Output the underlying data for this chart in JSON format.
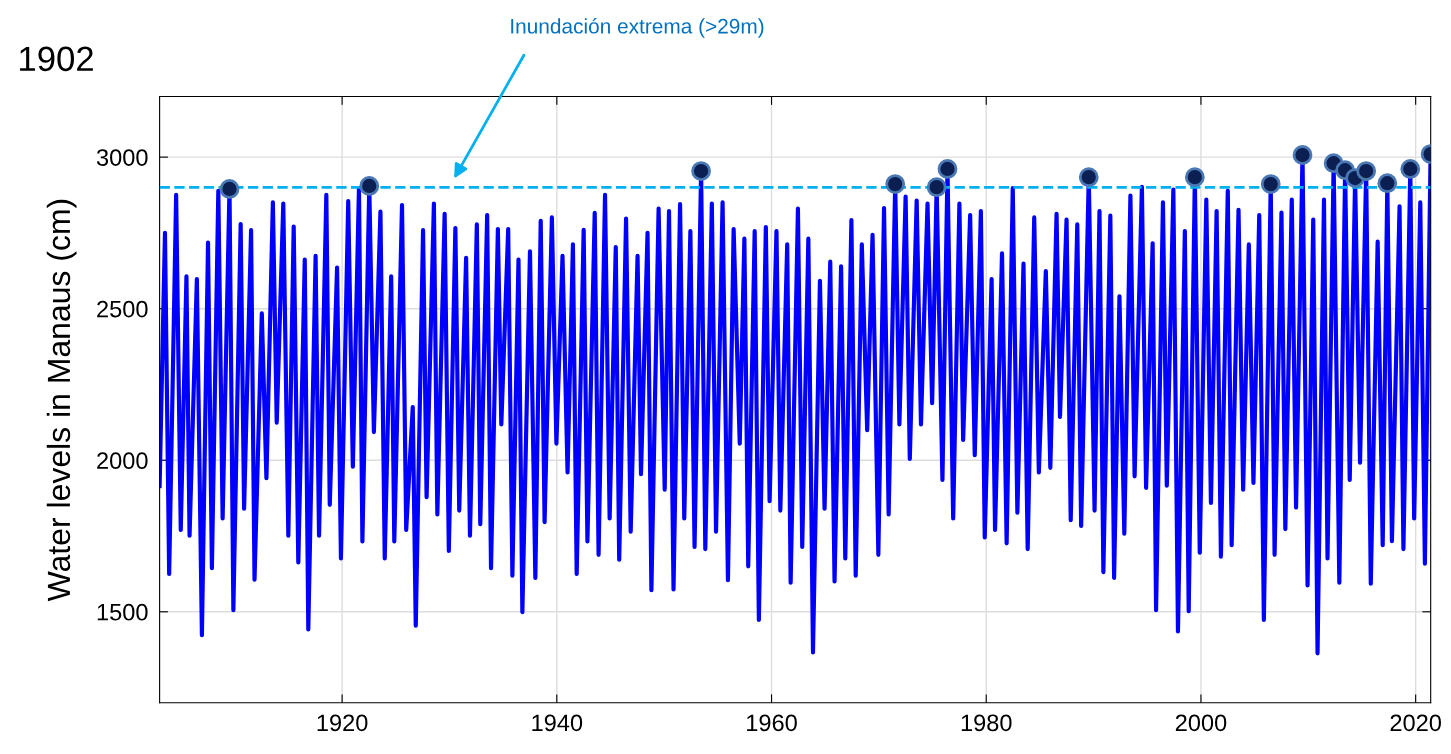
{
  "chart_data": {
    "type": "line",
    "title": "1902",
    "ylabel": "Water levels in Manaus (cm)",
    "xlim": [
      1903,
      2021.4
    ],
    "xticks": [
      1920,
      1940,
      1960,
      1980,
      2000,
      2020
    ],
    "ylim": [
      1200,
      3200
    ],
    "yticks": [
      1500,
      2000,
      2500,
      3000
    ],
    "grid": true,
    "annotations": [
      "Inundación extrema (>29m)"
    ],
    "ref_lines": [
      {
        "axis": "y",
        "value": 2900,
        "color": "#00b0f0",
        "line_style": "dashed"
      }
    ],
    "series": [
      {
        "color": "#0000ff",
        "line_style": "solid",
        "x": [
          1903.0,
          1903.5,
          1903.89,
          1904.54,
          1904.97,
          1905.5,
          1905.79,
          1906.47,
          1906.94,
          1907.51,
          1907.87,
          1908.47,
          1908.87,
          1909.51,
          1909.87,
          1910.55,
          1910.87,
          1911.52,
          1911.84,
          1912.52,
          1912.95,
          1913.55,
          1913.91,
          1914.52,
          1914.99,
          1915.49,
          1915.92,
          1916.52,
          1916.85,
          1917.53,
          1917.85,
          1918.53,
          1918.85,
          1919.53,
          1919.89,
          1920.57,
          1921.0,
          1921.57,
          1921.89,
          1922.53,
          1922.96,
          1923.57,
          1923.97,
          1924.57,
          1924.86,
          1925.58,
          1925.97,
          1926.58,
          1926.86,
          1927.54,
          1927.87,
          1928.55,
          1928.87,
          1929.55,
          1929.94,
          1930.55,
          1930.91,
          1931.55,
          1931.91,
          1932.55,
          1932.87,
          1933.51,
          1933.87,
          1934.51,
          1934.83,
          1935.47,
          1935.86,
          1936.43,
          1936.79,
          1937.5,
          1938.0,
          1938.5,
          1938.86,
          1939.54,
          1939.96,
          1940.53,
          1941.0,
          1941.5,
          1941.85,
          1942.5,
          1942.85,
          1943.53,
          1943.89,
          1944.49,
          1944.92,
          1945.49,
          1945.81,
          1946.45,
          1946.88,
          1947.52,
          1947.84,
          1948.45,
          1948.81,
          1949.48,
          1950.05,
          1950.45,
          1950.87,
          1951.48,
          1951.87,
          1952.44,
          1952.83,
          1953.44,
          1953.83,
          1954.44,
          1954.83,
          1955.44,
          1955.94,
          1956.47,
          1957.04,
          1957.47,
          1957.83,
          1958.43,
          1958.82,
          1959.47,
          1959.82,
          1960.46,
          1960.82,
          1961.46,
          1961.78,
          1962.46,
          1962.86,
          1963.43,
          1963.86,
          1964.51,
          1964.94,
          1965.47,
          1965.87,
          1966.48,
          1966.87,
          1967.44,
          1967.84,
          1968.41,
          1968.91,
          1969.41,
          1969.95,
          1970.48,
          1970.91,
          1971.52,
          1971.91,
          1972.49,
          1972.88,
          1973.52,
          1973.92,
          1974.53,
          1974.96,
          1975.38,
          1975.92,
          1976.39,
          1976.92,
          1977.5,
          1977.85,
          1978.5,
          1978.93,
          1979.5,
          1979.86,
          1980.5,
          1980.82,
          1981.47,
          1981.9,
          1982.47,
          1982.9,
          1983.47,
          1983.86,
          1984.47,
          1984.9,
          1985.55,
          1985.97,
          1986.55,
          1986.87,
          1987.48,
          1987.87,
          1988.48,
          1988.84,
          1989.55,
          1990.09,
          1990.55,
          1990.91,
          1991.56,
          1991.91,
          1992.41,
          1992.86,
          1993.43,
          1993.82,
          1994.5,
          1994.89,
          1995.5,
          1995.82,
          1996.46,
          1996.82,
          1997.43,
          1997.86,
          1998.5,
          1998.86,
          1999.43,
          1999.89,
          2000.5,
          2000.93,
          2001.46,
          2001.86,
          2002.5,
          2002.86,
          2003.5,
          2003.93,
          2004.46,
          2004.89,
          2005.43,
          2005.86,
          2006.5,
          2006.86,
          2007.5,
          2007.86,
          2008.46,
          2008.86,
          2009.46,
          2009.93,
          2010.46,
          2010.86,
          2011.46,
          2011.79,
          2012.36,
          2012.89,
          2013.43,
          2013.86,
          2014.36,
          2014.82,
          2015.39,
          2015.82,
          2016.46,
          2016.93,
          2017.36,
          2017.79,
          2018.5,
          2018.86,
          2019.5,
          2019.86,
          2020.43,
          2020.86,
          2021.39
        ],
        "values": [
          1915,
          2750,
          1625,
          2876,
          1770,
          2607,
          1751,
          2598,
          1423,
          2718,
          1644,
          2889,
          1808,
          2895,
          1505,
          2779,
          1840,
          2759,
          1606,
          2485,
          1941,
          2851,
          2124,
          2847,
          1751,
          2771,
          1663,
          2662,
          1442,
          2674,
          1751,
          2876,
          1853,
          2636,
          1676,
          2855,
          1979,
          2898,
          1732,
          2905,
          2093,
          2820,
          1676,
          2607,
          1732,
          2842,
          1770,
          2175,
          1454,
          2759,
          1878,
          2847,
          1821,
          2813,
          1701,
          2766,
          1834,
          2668,
          1751,
          2778,
          1789,
          2809,
          1644,
          2763,
          2118,
          2763,
          1619,
          2662,
          1499,
          2689,
          1612,
          2790,
          1796,
          2801,
          2055,
          2674,
          1960,
          2712,
          1625,
          2760,
          1732,
          2816,
          1688,
          2876,
          1808,
          2703,
          1672,
          2797,
          1764,
          2674,
          1954,
          2750,
          1571,
          2830,
          1903,
          2822,
          1574,
          2845,
          1808,
          2756,
          1714,
          2954,
          1707,
          2847,
          1764,
          2851,
          1604,
          2763,
          2055,
          2731,
          1650,
          2756,
          1473,
          2769,
          1865,
          2756,
          1834,
          2712,
          1596,
          2830,
          1714,
          2731,
          1366,
          2592,
          1840,
          2655,
          1600,
          2640,
          1676,
          2792,
          1619,
          2712,
          2099,
          2744,
          1688,
          2832,
          1821,
          2911,
          2118,
          2870,
          2004,
          2857,
          2118,
          2847,
          2188,
          2901,
          1935,
          2961,
          1808,
          2847,
          2067,
          2809,
          2017,
          2822,
          1745,
          2598,
          1770,
          2683,
          1726,
          2898,
          1827,
          2649,
          1707,
          2801,
          1960,
          2624,
          1975,
          2813,
          2143,
          2794,
          1802,
          2778,
          1783,
          2934,
          1834,
          2822,
          1631,
          2807,
          1612,
          2541,
          1758,
          2873,
          1947,
          2902,
          1909,
          2716,
          1505,
          2851,
          1916,
          2893,
          1435,
          2756,
          1502,
          2934,
          1695,
          2860,
          1859,
          2822,
          1682,
          2889,
          1720,
          2826,
          1903,
          2712,
          1925,
          2809,
          1473,
          2911,
          1688,
          2817,
          1773,
          2860,
          1844,
          3007,
          1587,
          2794,
          1363,
          2860,
          1676,
          2980,
          1596,
          2957,
          1935,
          2931,
          1992,
          2954,
          1593,
          2721,
          1720,
          2914,
          1733,
          2838,
          1707,
          2961,
          1808,
          2851,
          1659,
          3010
        ]
      },
      {
        "type": "scatter",
        "color": "#0b1f52",
        "marker": "circle",
        "x": [
          1909.51,
          1922.53,
          1953.44,
          1971.52,
          1975.38,
          1976.39,
          1989.55,
          1999.43,
          2006.5,
          2009.46,
          2012.36,
          2013.43,
          2014.36,
          2015.39,
          2017.36,
          2019.5,
          2021.39
        ],
        "values": [
          2895,
          2905,
          2954,
          2911,
          2901,
          2961,
          2934,
          2934,
          2911,
          3007,
          2980,
          2957,
          2931,
          2954,
          2914,
          2961,
          3010
        ]
      }
    ]
  }
}
